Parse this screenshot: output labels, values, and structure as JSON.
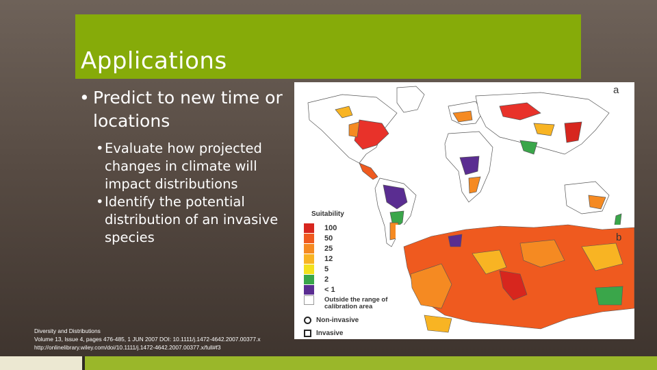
{
  "slide": {
    "title": "Applications",
    "bullets": [
      {
        "text": "Predict to new time or locations",
        "sub": [
          "Evaluate how projected changes in climate will impact distributions",
          "Identify the potential distribution of an invasive species"
        ]
      }
    ],
    "citation": [
      "Diversity and Distributions",
      "Volume 13, Issue 4, pages 476-485, 1 JUN 2007 DOI: 10.1111/j.1472-4642.2007.00377.x",
      "http://onlinelibrary.wiley.com/doi/10.1111/j.1472-4642.2007.00377.x/full#f3"
    ]
  },
  "figure": {
    "panel_a": "a",
    "panel_b": "b",
    "legend": {
      "title": "Suitability",
      "items": [
        {
          "label": "100",
          "color": "#d7261e"
        },
        {
          "label": "50",
          "color": "#ef5a1f"
        },
        {
          "label": "25",
          "color": "#f58a22"
        },
        {
          "label": "12",
          "color": "#f8b423"
        },
        {
          "label": "5",
          "color": "#f3e11d"
        },
        {
          "label": "2",
          "color": "#3aa64a"
        },
        {
          "label": "< 1",
          "color": "#5a2d91"
        },
        {
          "label": "Outside the range of calibration area",
          "color": "#ffffff"
        }
      ],
      "markers": [
        {
          "label": "Non-invasive",
          "shape": "circle"
        },
        {
          "label": "Invasive",
          "shape": "square"
        }
      ]
    }
  },
  "colors": {
    "title_bar": "#86ab09",
    "footer_green": "#9ab72a",
    "footer_light": "#ece8d2",
    "background": "#574b43"
  }
}
